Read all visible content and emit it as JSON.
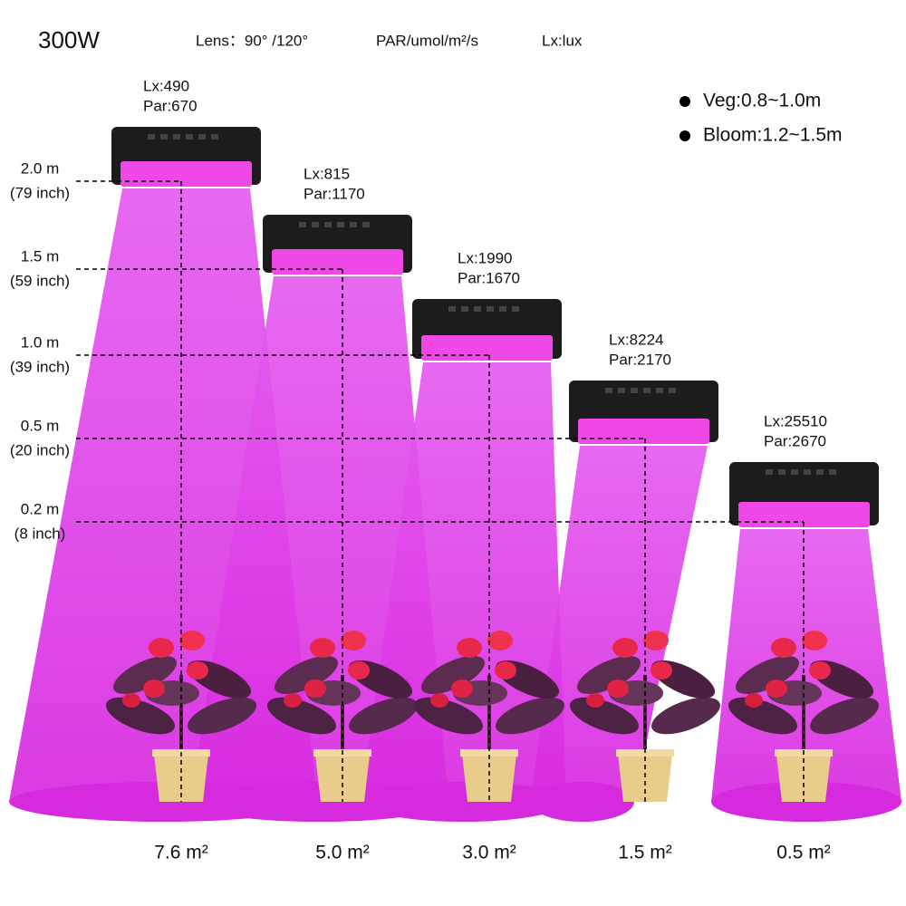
{
  "header": {
    "power": "300W",
    "lens": "Lens：90°  /120°",
    "par_unit": "PAR/umol/m²/s",
    "lux_unit": "Lx:lux"
  },
  "legend": [
    {
      "label": "Veg:0.8~1.0m"
    },
    {
      "label": "Bloom:1.2~1.5m"
    }
  ],
  "heights": [
    {
      "meters": "2.0 m",
      "inches": "(79 inch)"
    },
    {
      "meters": "1.5 m",
      "inches": "(59 inch)"
    },
    {
      "meters": "1.0 m",
      "inches": "(39 inch)"
    },
    {
      "meters": "0.5 m",
      "inches": "(20 inch)"
    },
    {
      "meters": "0.2 m",
      "inches": "(8 inch)"
    }
  ],
  "lamps": [
    {
      "lux": "Lx:490",
      "par": "Par:670",
      "area": "7.6 m²"
    },
    {
      "lux": "Lx:815",
      "par": "Par:1170",
      "area": "5.0 m²"
    },
    {
      "lux": "Lx:1990",
      "par": "Par:1670",
      "area": "3.0 m²"
    },
    {
      "lux": "Lx:8224",
      "par": "Par:2170",
      "area": "1.5 m²"
    },
    {
      "lux": "Lx:25510",
      "par": "Par:2670",
      "area": "0.5 m²"
    }
  ]
}
